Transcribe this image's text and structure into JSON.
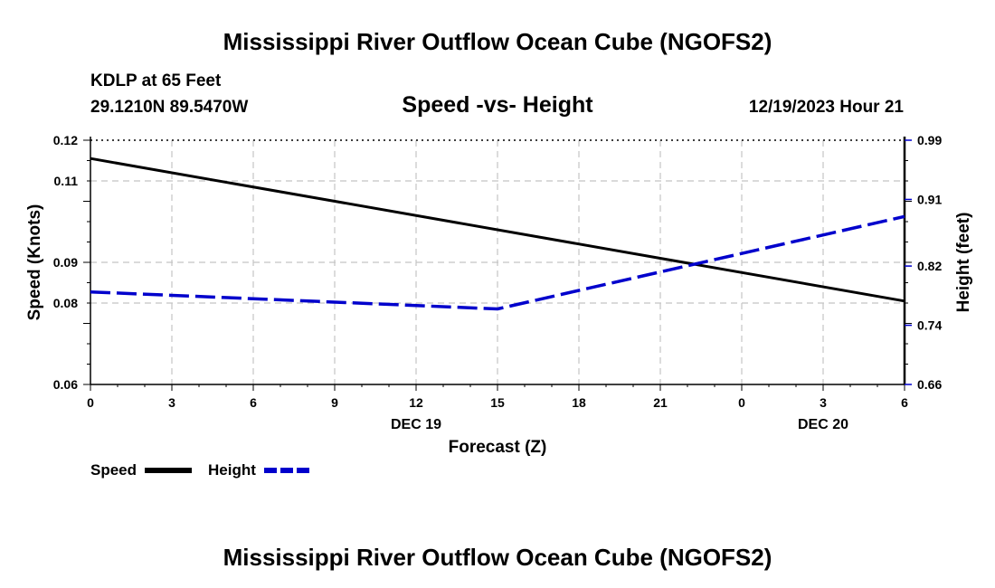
{
  "titles": {
    "main_title": "Mississippi River Outflow Ocean Cube (NGOFS2)",
    "station": "KDLP at 65 Feet",
    "coords": "29.1210N  89.5470W",
    "datetime": "12/19/2023 Hour 21",
    "repeat_title": "Mississippi River Outflow Ocean Cube (NGOFS2)"
  },
  "chart_data": {
    "type": "line",
    "title": "Speed -vs- Height",
    "xlabel": "Forecast (Z)",
    "ylabel": "Speed (Knots)",
    "y2label": "Height (feet)",
    "x_hours": [
      0,
      3,
      6,
      9,
      12,
      15,
      18,
      21,
      24,
      27,
      30
    ],
    "x_tick_labels": [
      "0",
      "3",
      "6",
      "9",
      "12",
      "15",
      "18",
      "21",
      "0",
      "3",
      "6"
    ],
    "date_labels": [
      {
        "label": "DEC 19",
        "at_hour": 12
      },
      {
        "label": "DEC 20",
        "at_hour": 27
      }
    ],
    "xlim": [
      0,
      30
    ],
    "ylim": [
      0.06,
      0.12
    ],
    "y_ticks": [
      0.06,
      0.08,
      0.09,
      0.11,
      0.12
    ],
    "y_tick_labels": [
      "0.06",
      "0.08",
      "0.09",
      "0.11",
      "0.12"
    ],
    "y2lim": [
      0.66,
      0.99
    ],
    "y2_ticks": [
      0.66,
      0.74,
      0.82,
      0.91,
      0.99
    ],
    "y2_tick_labels": [
      "0.66",
      "0.74",
      "0.82",
      "0.91",
      "0.99"
    ],
    "grid": true,
    "legend_position": "bottom-left",
    "series": [
      {
        "name": "Speed",
        "axis": "left",
        "color": "#000000",
        "style": "solid",
        "x": [
          0,
          30
        ],
        "values": [
          0.1155,
          0.0805
        ]
      },
      {
        "name": "Height",
        "axis": "right",
        "color": "#0000cc",
        "style": "dashed",
        "x": [
          0,
          15,
          30
        ],
        "values": [
          0.785,
          0.762,
          0.887
        ]
      }
    ]
  }
}
